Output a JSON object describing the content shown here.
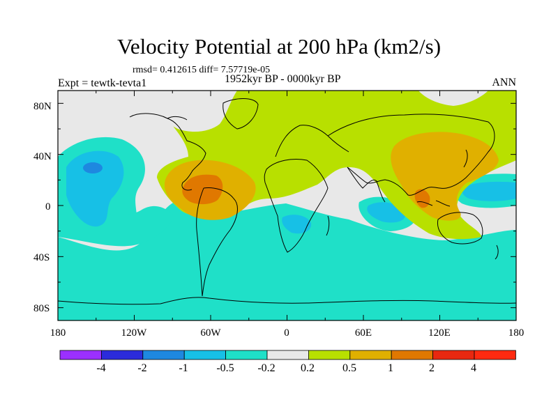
{
  "figure": {
    "title": "Velocity Potential at 200 hPa (km2/s)",
    "stats": "rmsd= 0.412615 diff= 7.57719e-05",
    "expt": "Expt = tewtk-tevta1",
    "period": "1952kyr BP - 0000kyr BP",
    "season": "ANN"
  },
  "axes": {
    "lon_ticks": [
      "180",
      "120W",
      "60W",
      "0",
      "60E",
      "120E",
      "180"
    ],
    "lat_ticks": [
      "80N",
      "40N",
      "0",
      "40S",
      "80S"
    ]
  },
  "colorbar": {
    "labels": [
      "-4",
      "-2",
      "-1",
      "-0.5",
      "-0.2",
      "0.2",
      "0.5",
      "1",
      "2",
      "4"
    ],
    "colors": [
      "#9b30ff",
      "#2b2bdb",
      "#1e88e0",
      "#17c0e6",
      "#1fe0c8",
      "#e8e8e8",
      "#b8e000",
      "#e0b000",
      "#e07800",
      "#e82810",
      "#ff2a10"
    ]
  },
  "field_colors": {
    "neutral": "#e8e8e8",
    "weak_negative": "#1fe0c8",
    "moderate_negative": "#17c0e6",
    "strong_negative": "#1e88e0",
    "weak_positive": "#b8e000",
    "moderate_positive": "#e0b000",
    "strong_positive": "#e07800"
  }
}
